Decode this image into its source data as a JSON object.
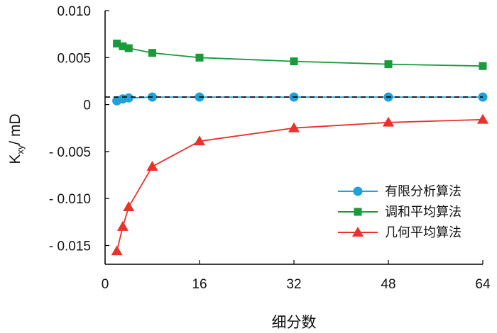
{
  "chart_data": {
    "type": "line",
    "xlabel": "细分数",
    "ylabel": "K",
    "ylabel_sub": "xy",
    "ylabel_suffix": "/ mD",
    "xlim": [
      0,
      64
    ],
    "ylim": [
      -0.017,
      0.01
    ],
    "x_ticks": [
      0,
      16,
      32,
      48,
      64
    ],
    "x_tick_labels": [
      "0",
      "16",
      "32",
      "48",
      "64"
    ],
    "y_ticks": [
      0.01,
      0.005,
      0,
      -0.005,
      -0.01,
      -0.015
    ],
    "y_tick_labels": [
      "0.010",
      "0.005",
      "0",
      "- 0.005",
      "- 0.010",
      "- 0.015"
    ],
    "grid": false,
    "legend_position": "lower-right",
    "reference_line": {
      "y": 0.0008,
      "style": "dashed",
      "color": "#000000"
    },
    "series": [
      {
        "name": "有限分析算法",
        "marker": "circle",
        "color": "#1fa1dc",
        "x": [
          2,
          3,
          4,
          8,
          16,
          32,
          48,
          64
        ],
        "y": [
          0.0004,
          0.0006,
          0.0007,
          0.0008,
          0.0008,
          0.0008,
          0.0008,
          0.0008
        ]
      },
      {
        "name": "调和平均算法",
        "marker": "square",
        "color": "#1a9a3a",
        "x": [
          2,
          3,
          4,
          8,
          16,
          32,
          48,
          64
        ],
        "y": [
          0.0065,
          0.0062,
          0.006,
          0.0055,
          0.005,
          0.0046,
          0.0043,
          0.0041
        ]
      },
      {
        "name": "几何平均算法",
        "marker": "triangle",
        "color": "#e8322b",
        "x": [
          2,
          3,
          4,
          8,
          16,
          32,
          48,
          64
        ],
        "y": [
          -0.0156,
          -0.013,
          -0.0109,
          -0.0066,
          -0.0039,
          -0.0025,
          -0.0019,
          -0.0016
        ]
      }
    ]
  }
}
